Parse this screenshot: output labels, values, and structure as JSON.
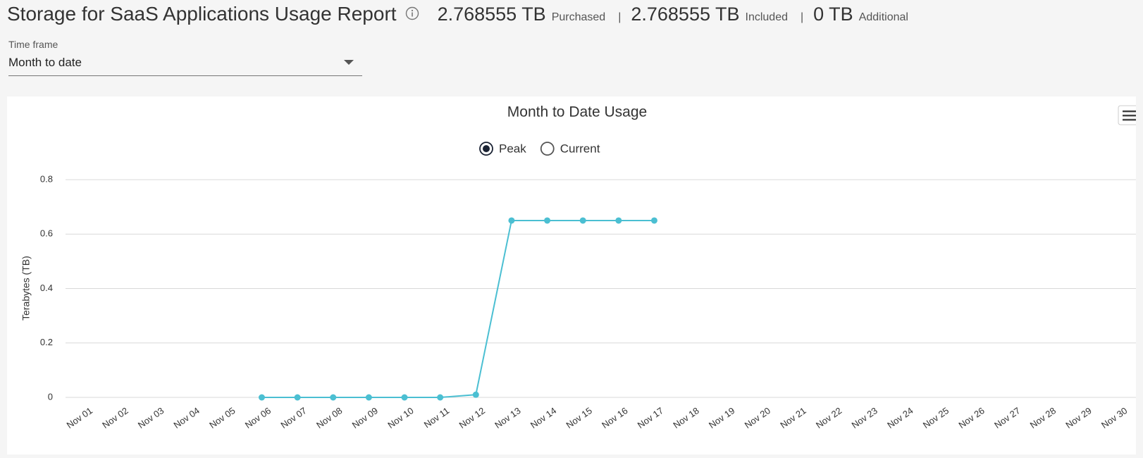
{
  "header": {
    "title": "Storage for SaaS Applications Usage Report",
    "stats": [
      {
        "value": "2.768555 TB",
        "label": "Purchased"
      },
      {
        "value": "2.768555 TB",
        "label": "Included"
      },
      {
        "value": "0 TB",
        "label": "Additional"
      }
    ]
  },
  "filter": {
    "label": "Time frame",
    "selected": "Month to date"
  },
  "chart_data": {
    "type": "line",
    "title": "Month to Date Usage",
    "options": [
      {
        "label": "Peak",
        "checked": true
      },
      {
        "label": "Current",
        "checked": false
      }
    ],
    "y_label": "Terabytes (TB)",
    "categories": [
      "Nov 01",
      "Nov 02",
      "Nov 03",
      "Nov 04",
      "Nov 05",
      "Nov 06",
      "Nov 07",
      "Nov 08",
      "Nov 09",
      "Nov 10",
      "Nov 11",
      "Nov 12",
      "Nov 13",
      "Nov 14",
      "Nov 15",
      "Nov 16",
      "Nov 17",
      "Nov 18",
      "Nov 19",
      "Nov 20",
      "Nov 21",
      "Nov 22",
      "Nov 23",
      "Nov 24",
      "Nov 25",
      "Nov 26",
      "Nov 27",
      "Nov 28",
      "Nov 29",
      "Nov 30"
    ],
    "series": [
      {
        "name": "Peak",
        "color": "#4bbfd2",
        "values": [
          null,
          null,
          null,
          null,
          null,
          0,
          0,
          0,
          0,
          0,
          0,
          0.01,
          0.65,
          0.65,
          0.65,
          0.65,
          0.65,
          null,
          null,
          null,
          null,
          null,
          null,
          null,
          null,
          null,
          null,
          null,
          null,
          null
        ]
      }
    ],
    "ylim": [
      0,
      0.8
    ],
    "yticks": [
      0,
      0.2,
      0.4,
      0.6,
      0.8
    ],
    "grid": true
  }
}
